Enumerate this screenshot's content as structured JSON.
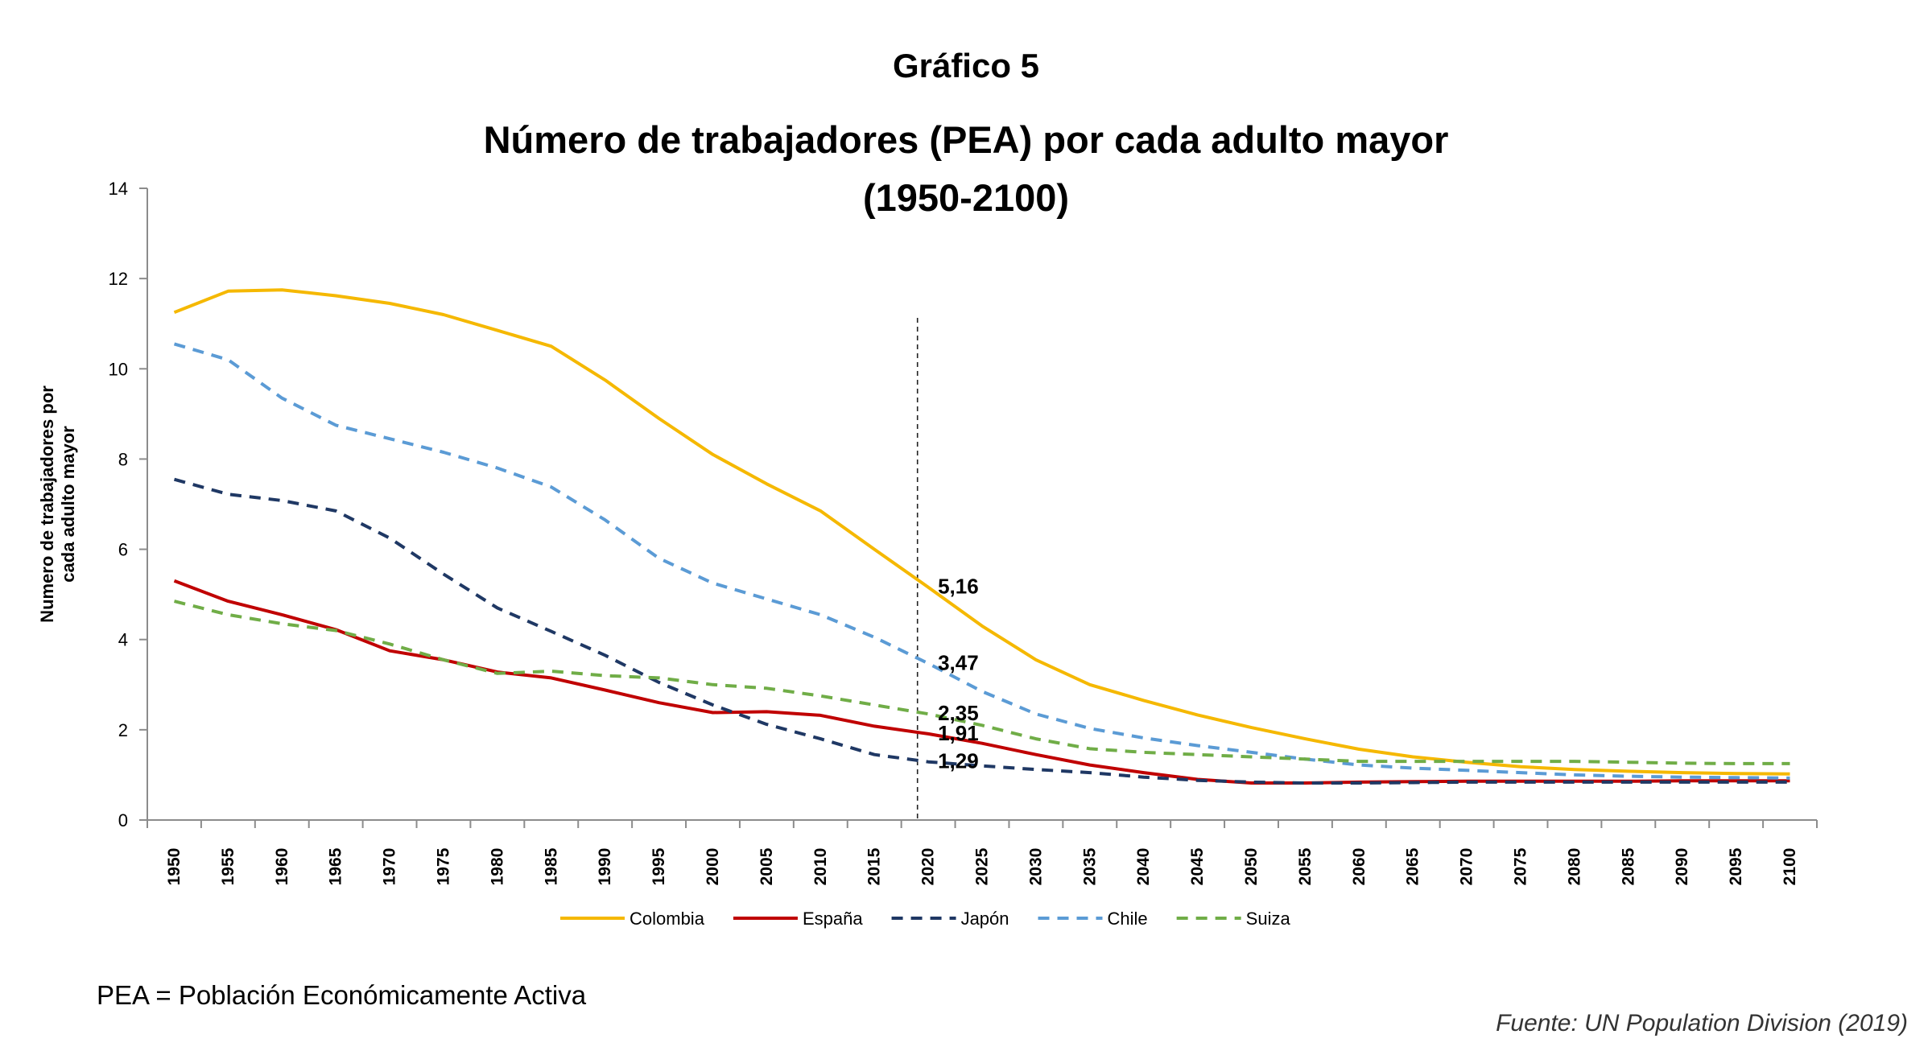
{
  "figure": {
    "label": "Gráfico 5",
    "title": "Número de trabajadores (PEA) por cada adulto mayor",
    "period": "(1950-2100)",
    "note": "PEA = Población Económicamente Activa",
    "source": "Fuente: UN Population Division (2019)"
  },
  "chart_data": {
    "type": "line",
    "ylabel_lines": [
      "Numero de trabajadores por",
      "cada adulto mayor"
    ],
    "ylim": [
      0,
      14
    ],
    "yticks": [
      0,
      2,
      4,
      6,
      8,
      10,
      12,
      14
    ],
    "x": [
      1950,
      1955,
      1960,
      1965,
      1970,
      1975,
      1980,
      1985,
      1990,
      1995,
      2000,
      2005,
      2010,
      2015,
      2020,
      2025,
      2030,
      2035,
      2040,
      2045,
      2050,
      2055,
      2060,
      2065,
      2070,
      2075,
      2080,
      2085,
      2090,
      2095,
      2100
    ],
    "grid": false,
    "legend_position": "bottom",
    "reference_line": {
      "x": 2019,
      "style": "dashed"
    },
    "series": [
      {
        "name": "Colombia",
        "color": "#F5B800",
        "dash": "solid",
        "values": [
          11.25,
          11.72,
          11.75,
          11.62,
          11.45,
          11.2,
          10.85,
          10.5,
          9.75,
          8.9,
          8.1,
          7.45,
          6.85,
          6.0,
          5.16,
          4.3,
          3.55,
          3.0,
          2.65,
          2.33,
          2.05,
          1.8,
          1.57,
          1.4,
          1.28,
          1.18,
          1.12,
          1.08,
          1.05,
          1.03,
          1.02
        ]
      },
      {
        "name": "España",
        "color": "#C00000",
        "dash": "solid",
        "values": [
          5.3,
          4.85,
          4.55,
          4.22,
          3.75,
          3.55,
          3.28,
          3.15,
          2.88,
          2.6,
          2.38,
          2.4,
          2.32,
          2.08,
          1.91,
          1.7,
          1.45,
          1.22,
          1.05,
          0.9,
          0.82,
          0.82,
          0.84,
          0.85,
          0.86,
          0.86,
          0.86,
          0.86,
          0.87,
          0.87,
          0.87
        ]
      },
      {
        "name": "Japón",
        "color": "#1F3864",
        "dash": "dashed",
        "values": [
          7.55,
          7.22,
          7.08,
          6.85,
          6.25,
          5.45,
          4.7,
          4.18,
          3.65,
          3.05,
          2.55,
          2.12,
          1.8,
          1.45,
          1.29,
          1.2,
          1.12,
          1.05,
          0.95,
          0.88,
          0.84,
          0.82,
          0.82,
          0.83,
          0.84,
          0.84,
          0.84,
          0.84,
          0.84,
          0.84,
          0.84
        ]
      },
      {
        "name": "Chile",
        "color": "#5B9BD5",
        "dash": "dashed",
        "values": [
          10.55,
          10.2,
          9.35,
          8.75,
          8.45,
          8.15,
          7.8,
          7.38,
          6.65,
          5.8,
          5.25,
          4.9,
          4.55,
          4.05,
          3.47,
          2.85,
          2.35,
          2.03,
          1.82,
          1.65,
          1.5,
          1.35,
          1.22,
          1.15,
          1.1,
          1.05,
          1.0,
          0.97,
          0.95,
          0.94,
          0.93
        ]
      },
      {
        "name": "Suiza",
        "color": "#70AD47",
        "dash": "dashed",
        "values": [
          4.85,
          4.55,
          4.35,
          4.2,
          3.9,
          3.55,
          3.25,
          3.3,
          3.2,
          3.15,
          3.0,
          2.92,
          2.75,
          2.55,
          2.35,
          2.1,
          1.8,
          1.58,
          1.5,
          1.45,
          1.4,
          1.35,
          1.3,
          1.3,
          1.3,
          1.3,
          1.3,
          1.28,
          1.26,
          1.25,
          1.25
        ]
      }
    ],
    "annotations": [
      {
        "text": "5,16",
        "x": 2020,
        "y": 5.16
      },
      {
        "text": "3,47",
        "x": 2020,
        "y": 3.47
      },
      {
        "text": "2,35",
        "x": 2020,
        "y": 2.35
      },
      {
        "text": "1,91",
        "x": 2020,
        "y": 1.91
      },
      {
        "text": "1,29",
        "x": 2020,
        "y": 1.29
      }
    ]
  }
}
